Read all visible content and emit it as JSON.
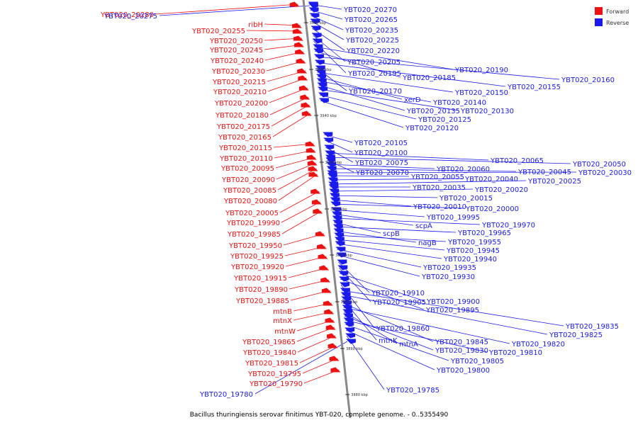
{
  "caption": "Bacillus thuringiensis serovar finitimus YBT-020, complete genome. - 0..5355490",
  "legend": {
    "forward_label": "Forward",
    "reverse_label": "Reverse",
    "forward_color": "#ee1111",
    "reverse_color": "#1a1aee"
  },
  "axis_color": "#888888",
  "ticks": [
    "3960 kbp",
    "3950 kbp",
    "3940 kbp",
    "3930 kbp",
    "3920 kbp",
    "3910 kbp",
    "3900 kbp",
    "3890 kbp",
    "3880 kbp"
  ],
  "forward_genes": [
    "YBT020_20280",
    "ribH",
    "YBT020_20255",
    "YBT020_20250",
    "YBT020_20245",
    "YBT020_20240",
    "YBT020_20230",
    "YBT020_20215",
    "YBT020_20210",
    "YBT020_20200",
    "YBT020_20180",
    "YBT020_20175",
    "YBT020_20165",
    "YBT020_20115",
    "YBT020_20110",
    "YBT020_20095",
    "YBT020_20090",
    "YBT020_20085",
    "YBT020_20080",
    "YBT020_20005",
    "YBT020_19990",
    "YBT020_19985",
    "YBT020_19950",
    "YBT020_19925",
    "YBT020_19920",
    "YBT020_19915",
    "YBT020_19890",
    "YBT020_19885",
    "mtnB",
    "mtnX",
    "mtnW",
    "YBT020_19865",
    "YBT020_19840",
    "YBT020_19815",
    "YBT020_19795",
    "YBT020_19790"
  ],
  "reverse_genes": [
    "YBT020_20275",
    "YBT020_20270",
    "YBT020_20265",
    "YBT020_20235",
    "YBT020_20225",
    "YBT020_20220",
    "YBT020_20205",
    "YBT020_20195",
    "YBT020_20190",
    "YBT020_20185",
    "YBT020_20160",
    "YBT020_20155",
    "YBT020_20170",
    "YBT020_20150",
    "xerD",
    "YBT020_20140",
    "YBT020_20135",
    "YBT020_20130",
    "YBT020_20125",
    "YBT020_20120",
    "YBT020_20105",
    "YBT020_20100",
    "YBT020_20075",
    "YBT020_20065",
    "YBT020_20050",
    "YBT020_20070",
    "YBT020_20060",
    "YBT020_20045",
    "YBT020_20030",
    "YBT020_20055",
    "YBT020_20040",
    "YBT020_20025",
    "YBT020_20035",
    "YBT020_20020",
    "YBT020_20015",
    "YBT020_20010",
    "YBT020_20000",
    "YBT020_19995",
    "scpA",
    "YBT020_19970",
    "scpB",
    "YBT020_19965",
    "nagB",
    "YBT020_19955",
    "YBT020_19945",
    "YBT020_19940",
    "YBT020_19935",
    "YBT020_19930",
    "YBT020_19910",
    "YBT020_19905",
    "YBT020_19900",
    "YBT020_19895",
    "YBT020_19860",
    "YBT020_19835",
    "YBT020_19825",
    "mtnK",
    "YBT020_19845",
    "YBT020_19820",
    "mtnA",
    "YBT020_19830",
    "YBT020_19810",
    "YBT020_19805",
    "YBT020_19800",
    "YBT020_19785",
    "YBT020_19780"
  ]
}
